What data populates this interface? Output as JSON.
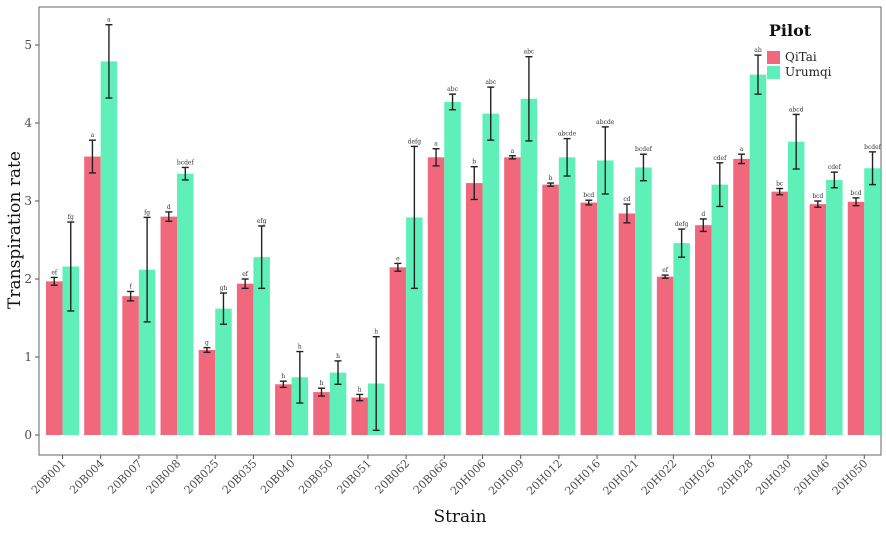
{
  "chart_data": {
    "type": "bar",
    "xlabel": "Strain",
    "ylabel": "Transpiration rate",
    "ylim": [
      0,
      5.5
    ],
    "yticks": [
      0,
      1,
      2,
      3,
      4,
      5
    ],
    "grid": false,
    "legend": {
      "title": "Pilot",
      "placement": "top-right"
    },
    "categories": [
      "20B001",
      "20B004",
      "20B007",
      "20B008",
      "20B025",
      "20B035",
      "20B040",
      "20B050",
      "20B051",
      "20B062",
      "20B066",
      "20H006",
      "20H009",
      "20H012",
      "20H016",
      "20H021",
      "20H022",
      "20H026",
      "20H028",
      "20H030",
      "20H046",
      "20H050"
    ],
    "series": [
      {
        "name": "QiTai",
        "color": "#f1687d",
        "values": [
          1.97,
          3.57,
          1.78,
          2.8,
          1.09,
          1.94,
          0.65,
          0.55,
          0.48,
          2.15,
          3.56,
          3.23,
          3.56,
          3.21,
          2.98,
          2.84,
          2.03,
          2.69,
          3.54,
          3.12,
          2.96,
          2.99
        ],
        "errors": [
          0.05,
          0.21,
          0.06,
          0.06,
          0.03,
          0.06,
          0.04,
          0.05,
          0.04,
          0.05,
          0.11,
          0.21,
          0.02,
          0.02,
          0.03,
          0.12,
          0.02,
          0.08,
          0.06,
          0.04,
          0.04,
          0.05
        ],
        "labels": [
          "ef",
          "a",
          "f",
          "d",
          "g",
          "ef",
          "h",
          "h",
          "h",
          "e",
          "a",
          "b",
          "a",
          "b",
          "bcd",
          "cd",
          "ef",
          "d",
          "a",
          "bc",
          "bcd",
          "bcd"
        ]
      },
      {
        "name": "Urumqi",
        "color": "#5ef0b8",
        "values": [
          2.16,
          4.79,
          2.12,
          3.35,
          1.62,
          2.28,
          0.74,
          0.8,
          0.66,
          2.79,
          4.27,
          4.12,
          4.31,
          3.56,
          3.52,
          3.43,
          2.46,
          3.21,
          4.62,
          3.76,
          3.27,
          3.42
        ],
        "errors": [
          0.57,
          0.47,
          0.67,
          0.08,
          0.2,
          0.4,
          0.33,
          0.15,
          0.6,
          0.91,
          0.1,
          0.34,
          0.54,
          0.24,
          0.43,
          0.17,
          0.18,
          0.28,
          0.25,
          0.35,
          0.1,
          0.21
        ],
        "labels": [
          "fg",
          "a",
          "fg",
          "bcdef",
          "gh",
          "efg",
          "h",
          "h",
          "h",
          "defg",
          "abc",
          "abc",
          "abc",
          "abcde",
          "abcde",
          "bcdef",
          "defg",
          "cdef",
          "ab",
          "abcd",
          "cdef",
          "bcdef"
        ]
      }
    ]
  }
}
